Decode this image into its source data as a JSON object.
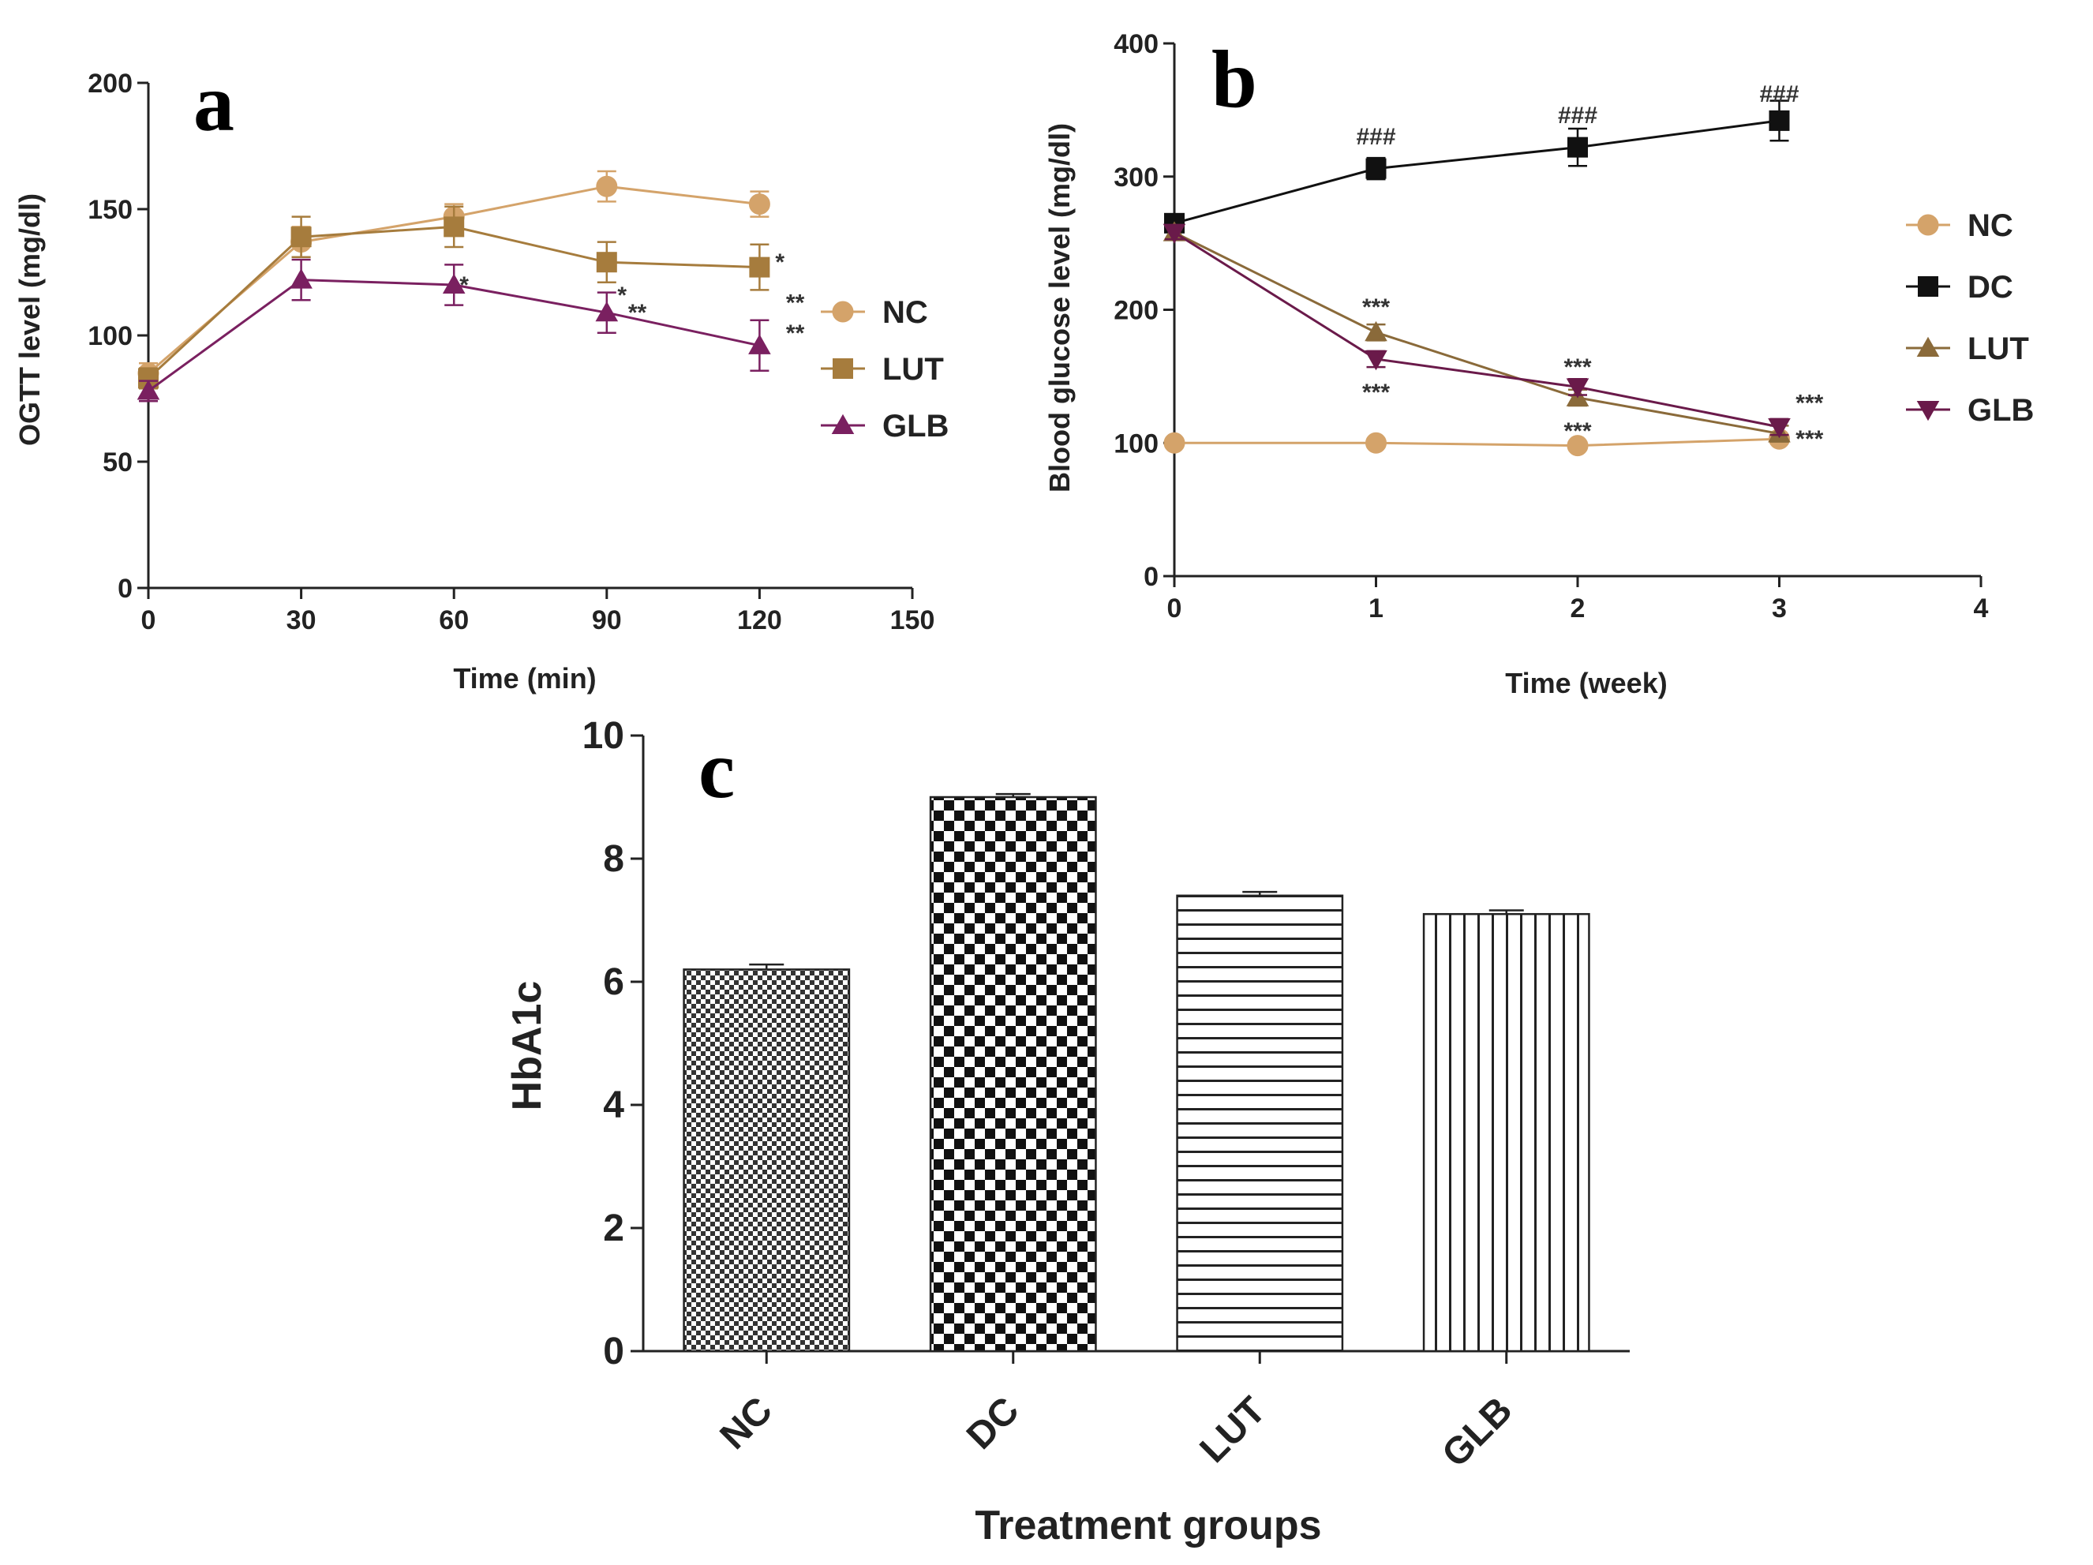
{
  "chart_data": [
    {
      "panel": "a",
      "type": "line",
      "xlabel": "Time (min)",
      "ylabel": "OGTT level (mg/dl)",
      "xlim": [
        0,
        150
      ],
      "ylim": [
        0,
        200
      ],
      "xticks": [
        "0",
        "30",
        "60",
        "90",
        "120",
        "150"
      ],
      "yticks": [
        "0",
        "50",
        "100",
        "150",
        "200"
      ],
      "x": [
        0,
        30,
        60,
        90,
        120
      ],
      "series": [
        {
          "name": "NC",
          "color": "#d4a36a",
          "marker": "circle",
          "values": [
            85,
            137,
            147,
            159,
            152
          ],
          "errors": [
            4,
            6,
            5,
            6,
            5
          ]
        },
        {
          "name": "LUT",
          "color": "#a67c3d",
          "marker": "square",
          "values": [
            83,
            139,
            143,
            129,
            127
          ],
          "errors": [
            4,
            8,
            8,
            8,
            9
          ]
        },
        {
          "name": "GLB",
          "color": "#7a2060",
          "marker": "triangle-up",
          "values": [
            78,
            122,
            120,
            109,
            96
          ],
          "errors": [
            4,
            8,
            8,
            8,
            10
          ]
        }
      ],
      "annotations": [
        {
          "text": "*",
          "x": 62,
          "y": 120
        },
        {
          "text": "*",
          "x": 93,
          "y": 116
        },
        {
          "text": "**",
          "x": 96,
          "y": 109
        },
        {
          "text": "*",
          "x": 124,
          "y": 129
        },
        {
          "text": "**",
          "x": 127,
          "y": 113
        },
        {
          "text": "**",
          "x": 127,
          "y": 101
        }
      ]
    },
    {
      "panel": "b",
      "type": "line",
      "xlabel": "Time (week)",
      "ylabel": "Blood glucose level (mg/dl)",
      "xlim": [
        0,
        4
      ],
      "ylim": [
        0,
        400
      ],
      "xticks": [
        "0",
        "1",
        "2",
        "3",
        "4"
      ],
      "yticks": [
        "0",
        "100",
        "200",
        "300",
        "400"
      ],
      "x": [
        0,
        1,
        2,
        3
      ],
      "series": [
        {
          "name": "NC",
          "color": "#d4a36a",
          "marker": "circle",
          "values": [
            100,
            100,
            98,
            103
          ],
          "errors": [
            3,
            3,
            3,
            3
          ]
        },
        {
          "name": "DC",
          "color": "#111111",
          "marker": "square",
          "values": [
            265,
            306,
            322,
            342
          ],
          "errors": [
            5,
            8,
            14,
            15
          ]
        },
        {
          "name": "LUT",
          "color": "#8a6a3a",
          "marker": "triangle-up",
          "values": [
            258,
            183,
            134,
            107
          ],
          "errors": [
            5,
            6,
            6,
            6
          ]
        },
        {
          "name": "GLB",
          "color": "#6a1a4a",
          "marker": "triangle-down",
          "values": [
            258,
            163,
            142,
            112
          ],
          "errors": [
            5,
            6,
            6,
            6
          ]
        }
      ],
      "annotations": [
        {
          "text": "###",
          "x": 1,
          "y": 330
        },
        {
          "text": "###",
          "x": 2,
          "y": 346
        },
        {
          "text": "###",
          "x": 3,
          "y": 362
        },
        {
          "text": "***",
          "x": 1,
          "y": 202
        },
        {
          "text": "***",
          "x": 1,
          "y": 138
        },
        {
          "text": "***",
          "x": 2,
          "y": 157
        },
        {
          "text": "***",
          "x": 2,
          "y": 109
        },
        {
          "text": "***",
          "x": 3.15,
          "y": 130
        },
        {
          "text": "***",
          "x": 3.15,
          "y": 103
        }
      ]
    },
    {
      "panel": "c",
      "type": "bar",
      "xlabel": "Treatment groups",
      "ylabel": "HbA1c",
      "ylim": [
        0,
        10
      ],
      "yticks": [
        "0",
        "2",
        "4",
        "6",
        "8",
        "10"
      ],
      "categories": [
        "NC",
        "DC",
        "LUT",
        "GLB"
      ],
      "values": [
        6.2,
        9.0,
        7.4,
        7.1
      ],
      "errors": [
        0.08,
        0.05,
        0.06,
        0.06
      ]
    }
  ]
}
